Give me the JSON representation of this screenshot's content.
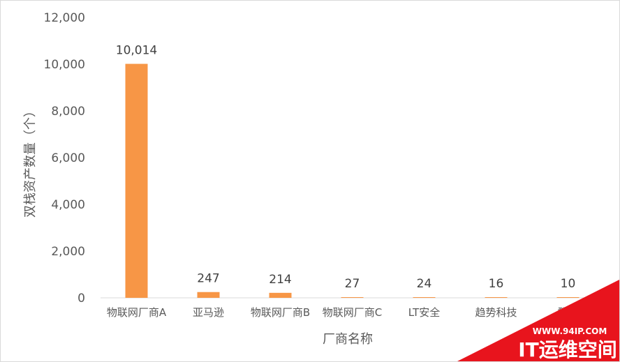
{
  "chart_data": {
    "type": "bar",
    "categories": [
      "物联网厂商A",
      "亚马逊",
      "物联网厂商B",
      "物联网厂商C",
      "LT安全",
      "趋势科技",
      "群辉"
    ],
    "values": [
      10014,
      247,
      214,
      27,
      24,
      16,
      10
    ],
    "data_labels": [
      "10,014",
      "247",
      "214",
      "27",
      "24",
      "16",
      "10"
    ],
    "y_ticks": [
      "0",
      "2,000",
      "4,000",
      "6,000",
      "8,000",
      "10,000",
      "12,000"
    ],
    "ylim": [
      0,
      12000
    ],
    "xlabel": "厂商名称",
    "ylabel": "双栈资产数量（个）",
    "bar_color": "#F79646",
    "grid": false,
    "legend": "none"
  },
  "watermark": {
    "url": "WWW.94IP.COM",
    "brand": "IT运维空间",
    "color": "#E8141D"
  }
}
